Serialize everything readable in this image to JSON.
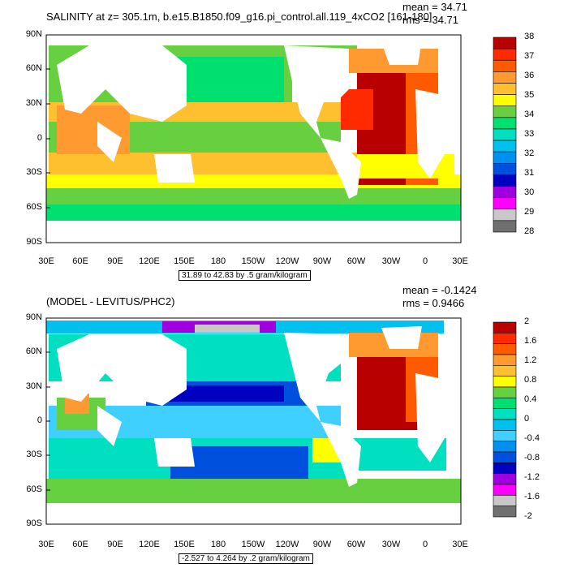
{
  "panel1": {
    "title": "SALINITY at z= 305.1m, b.e15.B1850.f09_g16.pi_control.all.119_4xCO2 [161-180]",
    "mean": "mean = 34.71",
    "rms": "rms = 34.71",
    "info": "31.89 to 42.83 by .5 gram/kilogram",
    "colorbar_labels": [
      "38",
      "37",
      "36",
      "35",
      "34",
      "33",
      "32",
      "31",
      "30",
      "29",
      "28"
    ],
    "colorbar_colors": [
      "#b80000",
      "#ff2a00",
      "#ff5a00",
      "#ff9a30",
      "#ffc030",
      "#ffff00",
      "#66d040",
      "#00e070",
      "#00e0c0",
      "#00c0f0",
      "#0090f0",
      "#0050e0",
      "#0000c0",
      "#a000e0",
      "#ff00ff",
      "#c8c8c8",
      "#707070"
    ]
  },
  "panel2": {
    "title": "(MODEL - LEVITUS/PHC2)",
    "mean": "mean = -0.1424",
    "rms": "rms = 0.9466",
    "info": "-2.527 to 4.264 by .2 gram/kilogram",
    "colorbar_labels": [
      "2",
      "1.6",
      "1.2",
      "0.8",
      "0.4",
      "0",
      "-0.4",
      "-0.8",
      "-1.2",
      "-1.6",
      "-2"
    ],
    "colorbar_colors": [
      "#b80000",
      "#ff2a00",
      "#ff5a00",
      "#ff9a30",
      "#ffc030",
      "#ffff00",
      "#66d040",
      "#00e070",
      "#00e0c0",
      "#00c0f0",
      "#40d0ff",
      "#0090f0",
      "#0050e0",
      "#0000c0",
      "#a000e0",
      "#ff00ff",
      "#c8c8c8",
      "#707070"
    ]
  },
  "axes": {
    "lat_labels": [
      "90N",
      "60N",
      "30N",
      "0",
      "30S",
      "60S",
      "90S"
    ],
    "lon_labels": [
      "30E",
      "60E",
      "90E",
      "120E",
      "150E",
      "180",
      "150W",
      "120W",
      "90W",
      "60W",
      "30W",
      "0",
      "30E"
    ]
  }
}
